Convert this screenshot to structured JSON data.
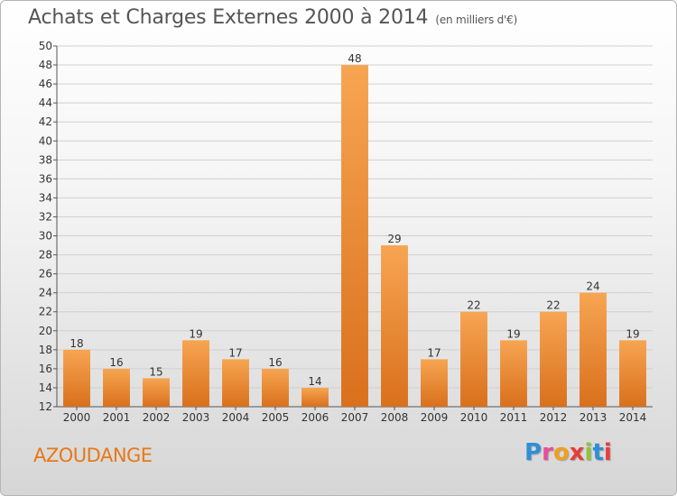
{
  "header": {
    "title": "Achats et Charges Externes 2000 à 2014",
    "unit": "(en milliers d'€)"
  },
  "footer": {
    "place": "AZOUDANGE",
    "logo_letters": [
      "P",
      "r",
      "o",
      "x",
      "i",
      "t",
      "i"
    ],
    "logo_colors": [
      "#2f8fd6",
      "#e94c9b",
      "#f0a020",
      "#e83c3c",
      "#8fc43c",
      "#2f8fd6",
      "#e83c3c"
    ]
  },
  "colors": {
    "bar_light": "#f7a552",
    "bar_dark": "#d9701c",
    "grid": "#d0d0d0",
    "axis_text": "#333333",
    "place": "#e77817"
  },
  "chart_data": {
    "type": "bar",
    "categories": [
      "2000",
      "2001",
      "2002",
      "2003",
      "2004",
      "2005",
      "2006",
      "2007",
      "2008",
      "2009",
      "2010",
      "2011",
      "2012",
      "2013",
      "2014"
    ],
    "values": [
      18,
      16,
      15,
      19,
      17,
      16,
      14,
      48,
      29,
      17,
      22,
      19,
      22,
      24,
      19
    ],
    "ylim": [
      12,
      50
    ],
    "yticks": [
      12,
      14,
      16,
      18,
      20,
      22,
      24,
      26,
      28,
      30,
      32,
      34,
      36,
      38,
      40,
      42,
      44,
      46,
      48,
      50
    ],
    "title": "Achats et Charges Externes 2000 à 2014",
    "subtitle": "(en milliers d'€)",
    "grid": true
  }
}
